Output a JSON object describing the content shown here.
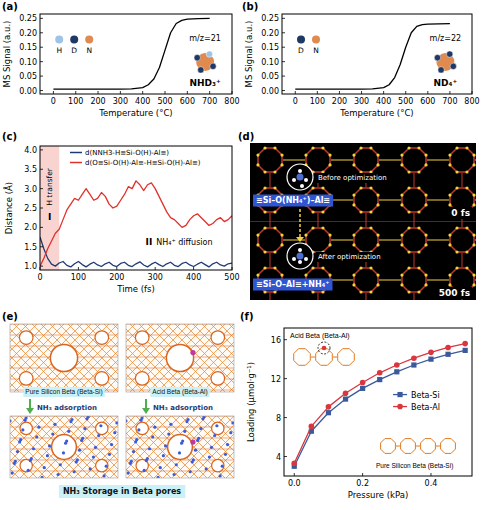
{
  "chart_data": [
    {
      "panel": "(a)",
      "type": "line",
      "x": [
        0,
        50,
        100,
        150,
        200,
        250,
        300,
        350,
        400,
        425,
        450,
        475,
        500,
        525,
        550,
        575,
        600,
        650,
        700
      ],
      "values": [
        0.005,
        0.005,
        0.005,
        0.005,
        0.005,
        0.005,
        0.005,
        0.006,
        0.01,
        0.02,
        0.04,
        0.08,
        0.14,
        0.2,
        0.232,
        0.243,
        0.247,
        0.249,
        0.25
      ],
      "color": "#000000",
      "xlim": [
        -60,
        800
      ],
      "ylim": [
        -0.012,
        0.265
      ],
      "xticks": [
        0,
        100,
        200,
        300,
        400,
        500,
        600,
        700,
        800
      ],
      "yticks": [
        {
          "value": 0,
          "label": "0.00"
        },
        0.05,
        {
          "value": 0.1,
          "label": "0.10"
        },
        0.15,
        {
          "value": 0.2,
          "label": "0.20"
        },
        0.25
      ],
      "x_label": "Temperature (°C)",
      "y_label": "MS Signal (a.u.)",
      "grid": false,
      "annotations": {
        "mz": "m/z=21",
        "ion": "NHD₃⁺",
        "atoms": [
          {
            "label": "H",
            "color": "#9dc3e6"
          },
          {
            "label": "D",
            "color": "#203864"
          },
          {
            "label": "N",
            "color": "#e08a4f"
          }
        ]
      }
    },
    {
      "panel": "(b)",
      "type": "line",
      "x": [
        0,
        50,
        100,
        150,
        200,
        250,
        300,
        350,
        400,
        425,
        450,
        475,
        500,
        525,
        550,
        575,
        600,
        650,
        700
      ],
      "values": [
        0.005,
        0.005,
        0.005,
        0.005,
        0.005,
        0.005,
        0.005,
        0.006,
        0.01,
        0.02,
        0.045,
        0.09,
        0.15,
        0.2,
        0.222,
        0.228,
        0.23,
        0.231,
        0.232
      ],
      "color": "#000000",
      "xlim": [
        -60,
        800
      ],
      "ylim": [
        -0.012,
        0.265
      ],
      "xticks": [
        0,
        100,
        200,
        300,
        400,
        500,
        600,
        700,
        800
      ],
      "yticks": [
        {
          "value": 0,
          "label": "0.00"
        },
        0.05,
        {
          "value": 0.1,
          "label": "0.10"
        },
        0.15,
        {
          "value": 0.2,
          "label": "0.20"
        },
        0.25
      ],
      "x_label": "Temperature (°C)",
      "y_label": "MS Signal (a.u.)",
      "grid": false,
      "annotations": {
        "mz": "m/z=22",
        "ion": "ND₄⁺",
        "atoms": [
          {
            "label": "D",
            "color": "#203864"
          },
          {
            "label": "N",
            "color": "#e08a4f"
          }
        ]
      }
    },
    {
      "panel": "(c)",
      "type": "line",
      "x": [
        0,
        10,
        20,
        30,
        40,
        50,
        60,
        70,
        80,
        90,
        100,
        110,
        120,
        130,
        140,
        150,
        160,
        170,
        180,
        190,
        200,
        210,
        220,
        230,
        240,
        250,
        260,
        270,
        280,
        290,
        300,
        310,
        320,
        330,
        340,
        350,
        360,
        370,
        380,
        390,
        400,
        410,
        420,
        430,
        440,
        450,
        460,
        470,
        480,
        490,
        500
      ],
      "series": [
        {
          "name": "d(NNH3-H≡Si-O(H)-Al≡)",
          "color": "#1f3b73",
          "values": [
            1.75,
            1.45,
            1.2,
            1.05,
            1.0,
            1.08,
            1.12,
            1.02,
            0.98,
            1.06,
            1.12,
            1.04,
            0.98,
            1.05,
            1.1,
            1.03,
            0.99,
            1.06,
            1.1,
            1.02,
            0.99,
            1.07,
            1.1,
            1.02,
            0.99,
            1.06,
            1.11,
            1.03,
            0.98,
            1.05,
            1.1,
            1.04,
            0.99,
            1.06,
            1.1,
            1.02,
            0.99,
            1.07,
            1.1,
            1.03,
            0.99,
            1.05,
            1.1,
            1.04,
            0.98,
            1.06,
            1.1,
            1.03,
            1.0,
            1.06,
            1.08
          ]
        },
        {
          "name": "d(O≡Si-O(H)-Al≡-H≡Si-O(H)-Al≡)",
          "color": "#e0312b",
          "values": [
            1.0,
            1.2,
            1.45,
            1.65,
            1.85,
            1.95,
            2.2,
            2.45,
            2.6,
            2.75,
            2.7,
            2.85,
            3.0,
            2.85,
            2.7,
            2.75,
            2.9,
            2.8,
            2.6,
            2.5,
            2.55,
            2.7,
            2.85,
            3.05,
            3.0,
            3.2,
            3.1,
            2.95,
            3.1,
            3.15,
            3.0,
            2.8,
            2.6,
            2.4,
            2.25,
            2.2,
            2.1,
            2.0,
            2.05,
            2.2,
            2.3,
            2.35,
            2.25,
            2.15,
            2.05,
            2.1,
            2.2,
            2.25,
            2.15,
            2.2,
            2.3
          ]
        }
      ],
      "xlim": [
        0,
        500
      ],
      "ylim": [
        0.9,
        4.1
      ],
      "xticks": [
        0,
        100,
        200,
        300,
        400,
        500
      ],
      "yticks": [
        {
          "value": 1,
          "label": "1.0"
        },
        1.5,
        {
          "value": 2,
          "label": "2.0"
        },
        2.5,
        {
          "value": 3,
          "label": "3.0"
        },
        3.5,
        {
          "value": 4,
          "label": "4.0"
        }
      ],
      "x_label": "Time (fs)",
      "y_label": "Distance (Å)",
      "grid": false,
      "legend": "top",
      "shaded_region": [
        0,
        50
      ],
      "annotations": {
        "region_1": "I",
        "region_1_text": "H transfer",
        "region_2": "II",
        "region_2_text": "NH₄⁺ diffusion"
      }
    },
    {
      "panel": "(f)",
      "type": "line",
      "x": [
        0,
        0.05,
        0.1,
        0.15,
        0.2,
        0.25,
        0.3,
        0.35,
        0.4,
        0.45,
        0.5
      ],
      "series": [
        {
          "name": "Beta-Si",
          "color": "#3a5a9c",
          "marker": "square",
          "values": [
            3.0,
            6.6,
            8.5,
            9.9,
            11.0,
            11.9,
            12.7,
            13.4,
            14.0,
            14.5,
            14.9
          ]
        },
        {
          "name": "Beta-Al",
          "color": "#d9363e",
          "marker": "circle",
          "values": [
            3.3,
            7.1,
            9.1,
            10.5,
            11.6,
            12.6,
            13.4,
            14.1,
            14.7,
            15.2,
            15.6
          ]
        }
      ],
      "xlim": [
        -0.03,
        0.52
      ],
      "ylim": [
        2,
        17.2
      ],
      "xticks": [
        {
          "value": 0,
          "label": "0.0"
        },
        0.2,
        0.4
      ],
      "yticks": [
        4,
        8,
        12,
        16
      ],
      "x_label": "Pressure (kPa)",
      "y_label": "Loading (μmol·g⁻¹)",
      "grid": false,
      "legend": "right",
      "insets": [
        "Acid Beta (Beta-Al)",
        "Pure Silicon Beta (Beta-Si)"
      ]
    }
  ],
  "diagrams": {
    "d": {
      "panel": "(d)",
      "before": {
        "caption": "Before optimization",
        "formula": "≡Si–O(NH₄⁺)–Al≡",
        "time": "0 fs"
      },
      "after": {
        "caption": "After optimization",
        "formula": "≡Si–O–Al≡+NH₄⁺",
        "time": "500 fs"
      }
    },
    "e": {
      "panel": "(e)",
      "images": [
        {
          "label": "Pure Silicon Beta (Beta-Si)"
        },
        {
          "label": "Acid Beta (Beta-Al)"
        }
      ],
      "arrows": [
        "NH₃ adsorption",
        "NH₃ adsorption"
      ],
      "banner": "NH₃ Storage in Beta pores"
    }
  }
}
